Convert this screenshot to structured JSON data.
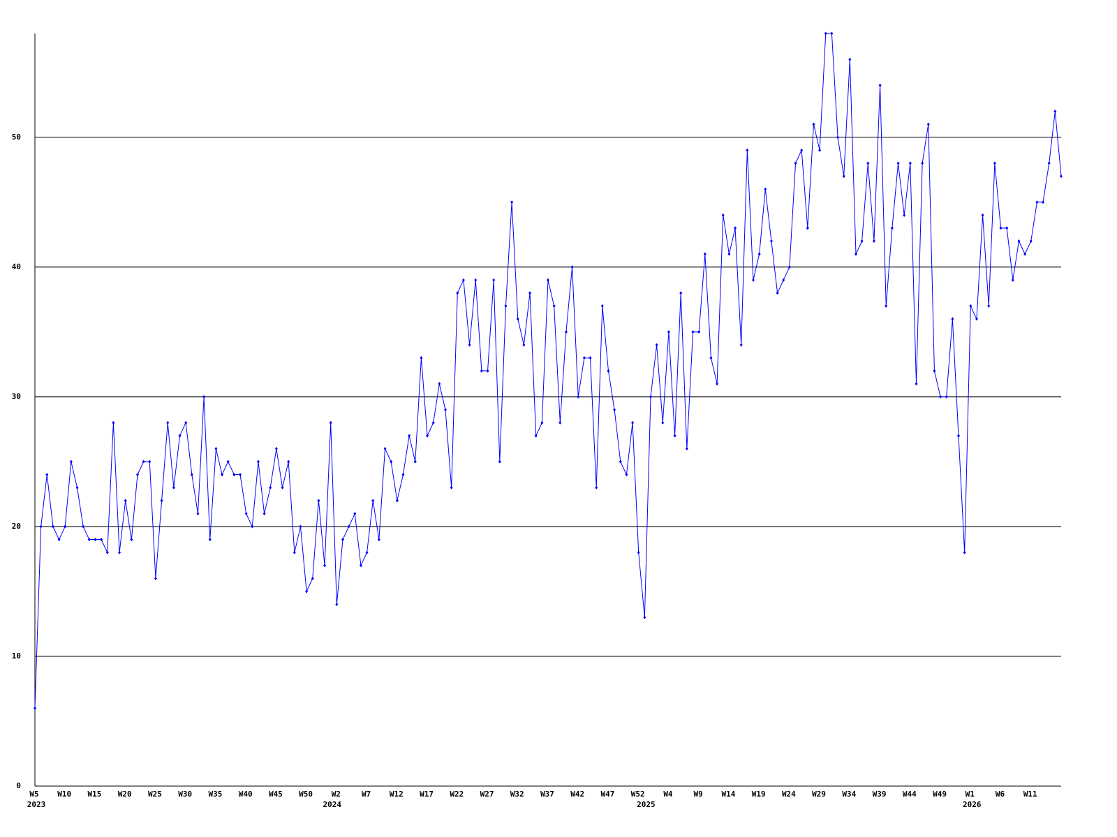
{
  "chart_data": {
    "type": "line",
    "categories": [
      "W5",
      null,
      null,
      null,
      null,
      "W10",
      null,
      null,
      null,
      null,
      "W15",
      null,
      null,
      null,
      null,
      "W20",
      null,
      null,
      null,
      null,
      "W25",
      null,
      null,
      null,
      null,
      "W30",
      null,
      null,
      null,
      null,
      "W35",
      null,
      null,
      null,
      null,
      "W40",
      null,
      null,
      null,
      null,
      "W45",
      null,
      null,
      null,
      null,
      "W50",
      null,
      null,
      null,
      null,
      "W2",
      null,
      null,
      null,
      null,
      "W7",
      null,
      null,
      null,
      null,
      "W12",
      null,
      null,
      null,
      null,
      "W17",
      null,
      null,
      null,
      null,
      "W22",
      null,
      null,
      null,
      null,
      "W27",
      null,
      null,
      null,
      null,
      "W32",
      null,
      null,
      null,
      null,
      "W37",
      null,
      null,
      null,
      null,
      "W42",
      null,
      null,
      null,
      null,
      "W47",
      null,
      null,
      null,
      null,
      "W52",
      null,
      null,
      null,
      null,
      "W4",
      null,
      null,
      null,
      null,
      "W9",
      null,
      null,
      null,
      null,
      "W14",
      null,
      null,
      null,
      null,
      "W19",
      null,
      null,
      null,
      null,
      "W24",
      null,
      null,
      null,
      null,
      "W29",
      null,
      null,
      null,
      null,
      "W34",
      null,
      null,
      null,
      null,
      "W39",
      null,
      null,
      null,
      null,
      "W44",
      null,
      null,
      null,
      null,
      "W49",
      null,
      null,
      null,
      null,
      "W1",
      null,
      null,
      null,
      null,
      "W6",
      null,
      null,
      null,
      null,
      "W11",
      null,
      null,
      null,
      null,
      null
    ],
    "category_years": [
      "2023",
      null,
      null,
      null,
      null,
      null,
      null,
      null,
      null,
      null,
      null,
      null,
      null,
      null,
      null,
      null,
      null,
      null,
      null,
      null,
      null,
      null,
      null,
      null,
      null,
      null,
      null,
      null,
      null,
      null,
      null,
      null,
      null,
      null,
      null,
      null,
      null,
      null,
      null,
      null,
      null,
      null,
      null,
      null,
      null,
      null,
      null,
      null,
      null,
      "2024",
      null,
      null,
      null,
      null,
      null,
      null,
      null,
      null,
      null,
      null,
      null,
      null,
      null,
      null,
      null,
      null,
      null,
      null,
      null,
      null,
      null,
      null,
      null,
      null,
      null,
      null,
      null,
      null,
      null,
      null,
      null,
      null,
      null,
      null,
      null,
      null,
      null,
      null,
      null,
      null,
      null,
      null,
      null,
      null,
      null,
      null,
      null,
      null,
      null,
      null,
      null,
      "2025",
      null,
      null,
      null,
      null,
      null,
      null,
      null,
      null,
      null,
      null,
      null,
      null,
      null,
      null,
      null,
      null,
      null,
      null,
      null,
      null,
      null,
      null,
      null,
      null,
      null,
      null,
      null,
      null,
      null,
      null,
      null,
      null,
      null,
      null,
      null,
      null,
      null,
      null,
      null,
      null,
      null,
      null,
      null,
      null,
      null,
      null,
      null,
      null,
      null,
      null,
      null,
      null,
      null,
      "2026",
      null,
      null,
      null,
      null,
      null,
      null,
      null,
      null,
      null,
      null,
      null,
      null,
      null,
      null,
      null
    ],
    "series": [
      {
        "color": "#0000ff",
        "values": [
          6,
          20,
          24,
          20,
          19,
          20,
          25,
          23,
          20,
          19,
          19,
          19,
          18,
          28,
          18,
          22,
          19,
          24,
          25,
          25,
          16,
          22,
          28,
          23,
          27,
          28,
          24,
          21,
          30,
          19,
          26,
          24,
          25,
          24,
          24,
          21,
          20,
          25,
          21,
          23,
          26,
          23,
          25,
          18,
          20,
          15,
          16,
          22,
          17,
          28,
          14,
          19,
          20,
          21,
          17,
          18,
          22,
          19,
          26,
          25,
          22,
          24,
          27,
          25,
          33,
          27,
          28,
          31,
          29,
          23,
          38,
          39,
          34,
          39,
          32,
          32,
          39,
          25,
          37,
          45,
          36,
          34,
          38,
          27,
          28,
          39,
          37,
          28,
          35,
          40,
          30,
          33,
          33,
          23,
          37,
          32,
          29,
          25,
          24,
          28,
          18,
          13,
          30,
          34,
          28,
          35,
          27,
          38,
          26,
          35,
          35,
          41,
          33,
          31,
          44,
          41,
          43,
          34,
          49,
          39,
          41,
          46,
          42,
          38,
          39,
          40,
          48,
          49,
          43,
          51,
          49,
          58,
          58,
          50,
          47,
          56,
          41,
          42,
          48,
          42,
          54,
          37,
          43,
          48,
          44,
          48,
          31,
          48,
          51,
          32,
          30,
          30,
          36,
          27,
          18,
          37,
          36,
          44,
          37,
          48,
          43,
          43,
          39,
          42,
          41,
          42,
          45,
          45,
          48,
          52,
          47
        ]
      }
    ],
    "ylim": [
      0,
      58
    ],
    "yticks": [
      0,
      10,
      20,
      30,
      40,
      50
    ],
    "grid": true
  }
}
